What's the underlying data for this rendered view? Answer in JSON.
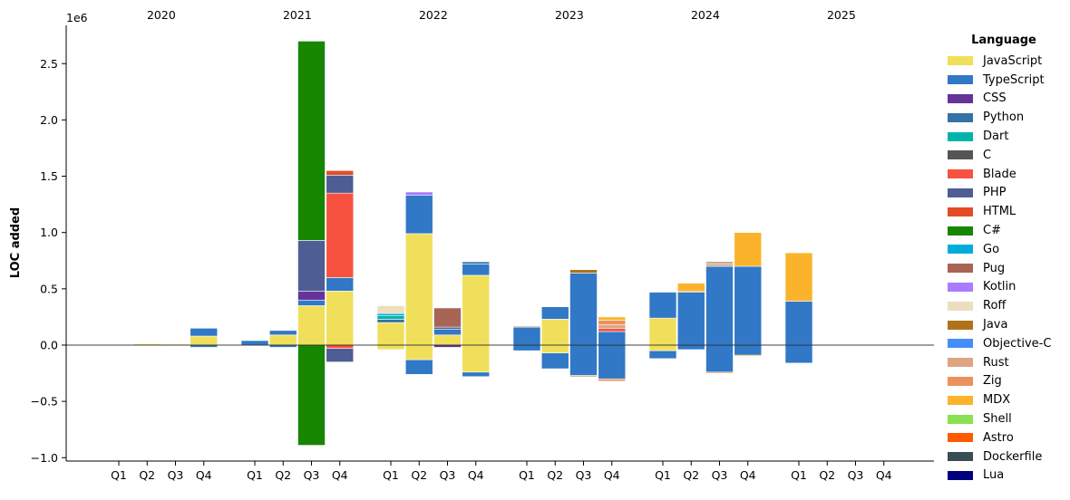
{
  "chart_data": {
    "type": "bar",
    "ylabel": "LOC added",
    "y_offset_label": "1e6",
    "ylim": [
      -1.03,
      2.84
    ],
    "yticks": [
      -1.0,
      -0.5,
      0.0,
      0.5,
      1.0,
      1.5,
      2.0,
      2.5
    ],
    "yticklabels": [
      "−1.0",
      "−0.5",
      "0.0",
      "0.5",
      "1.0",
      "1.5",
      "2.0",
      "2.5"
    ],
    "years": [
      "2020",
      "2021",
      "2022",
      "2023",
      "2024",
      "2025"
    ],
    "quarters": [
      "Q1",
      "Q2",
      "Q3",
      "Q4"
    ],
    "legend_title": "Language",
    "legend_position": "right",
    "languages": [
      {
        "name": "JavaScript",
        "color": "#f0df5a"
      },
      {
        "name": "TypeScript",
        "color": "#3178c6"
      },
      {
        "name": "CSS",
        "color": "#663399"
      },
      {
        "name": "Python",
        "color": "#3572a5"
      },
      {
        "name": "Dart",
        "color": "#00b4ab"
      },
      {
        "name": "C",
        "color": "#555555"
      },
      {
        "name": "Blade",
        "color": "#f7523f"
      },
      {
        "name": "PHP",
        "color": "#4f5d95"
      },
      {
        "name": "HTML",
        "color": "#e34c26"
      },
      {
        "name": "C#",
        "color": "#178600"
      },
      {
        "name": "Go",
        "color": "#00add8"
      },
      {
        "name": "Pug",
        "color": "#a86454"
      },
      {
        "name": "Kotlin",
        "color": "#a97bff"
      },
      {
        "name": "Roff",
        "color": "#ecdebe"
      },
      {
        "name": "Java",
        "color": "#b07219"
      },
      {
        "name": "Objective-C",
        "color": "#438eff"
      },
      {
        "name": "Rust",
        "color": "#dea584"
      },
      {
        "name": "Zig",
        "color": "#ec915c"
      },
      {
        "name": "MDX",
        "color": "#fcb32c"
      },
      {
        "name": "Shell",
        "color": "#89e051"
      },
      {
        "name": "Astro",
        "color": "#ff5a03"
      },
      {
        "name": "Dockerfile",
        "color": "#384d54"
      },
      {
        "name": "Lua",
        "color": "#000080"
      }
    ],
    "bars": [
      {
        "year": "2020",
        "quarter": "Q1",
        "positive": [],
        "negative": []
      },
      {
        "year": "2020",
        "quarter": "Q2",
        "positive": [
          {
            "lang": "JavaScript",
            "value": 0.012
          }
        ],
        "negative": []
      },
      {
        "year": "2020",
        "quarter": "Q3",
        "positive": [
          {
            "lang": "JavaScript",
            "value": 0.008
          }
        ],
        "negative": []
      },
      {
        "year": "2020",
        "quarter": "Q4",
        "positive": [
          {
            "lang": "JavaScript",
            "value": 0.08
          },
          {
            "lang": "TypeScript",
            "value": 0.07
          }
        ],
        "negative": [
          {
            "lang": "TypeScript",
            "value": 0.02
          }
        ]
      },
      {
        "year": "2021",
        "quarter": "Q1",
        "positive": [
          {
            "lang": "TypeScript",
            "value": 0.04
          }
        ],
        "negative": [
          {
            "lang": "TypeScript",
            "value": 0.005
          }
        ]
      },
      {
        "year": "2021",
        "quarter": "Q2",
        "positive": [
          {
            "lang": "JavaScript",
            "value": 0.09
          },
          {
            "lang": "TypeScript",
            "value": 0.04
          }
        ],
        "negative": [
          {
            "lang": "TypeScript",
            "value": 0.02
          }
        ]
      },
      {
        "year": "2021",
        "quarter": "Q3",
        "positive": [
          {
            "lang": "JavaScript",
            "value": 0.35
          },
          {
            "lang": "TypeScript",
            "value": 0.05
          },
          {
            "lang": "CSS",
            "value": 0.08
          },
          {
            "lang": "PHP",
            "value": 0.45
          },
          {
            "lang": "C#",
            "value": 1.77
          }
        ],
        "negative": [
          {
            "lang": "C#",
            "value": 0.89
          }
        ]
      },
      {
        "year": "2021",
        "quarter": "Q4",
        "positive": [
          {
            "lang": "JavaScript",
            "value": 0.48
          },
          {
            "lang": "TypeScript",
            "value": 0.12
          },
          {
            "lang": "Blade",
            "value": 0.75
          },
          {
            "lang": "PHP",
            "value": 0.16
          },
          {
            "lang": "HTML",
            "value": 0.04
          }
        ],
        "negative": [
          {
            "lang": "Blade",
            "value": 0.03
          },
          {
            "lang": "PHP",
            "value": 0.12
          }
        ]
      },
      {
        "year": "2022",
        "quarter": "Q1",
        "positive": [
          {
            "lang": "JavaScript",
            "value": 0.2
          },
          {
            "lang": "Python",
            "value": 0.03
          },
          {
            "lang": "Dart",
            "value": 0.03
          },
          {
            "lang": "Go",
            "value": 0.02
          },
          {
            "lang": "Roff",
            "value": 0.07
          }
        ],
        "negative": [
          {
            "lang": "JavaScript",
            "value": 0.04
          }
        ]
      },
      {
        "year": "2022",
        "quarter": "Q2",
        "positive": [
          {
            "lang": "JavaScript",
            "value": 0.99
          },
          {
            "lang": "TypeScript",
            "value": 0.34
          },
          {
            "lang": "Kotlin",
            "value": 0.03
          }
        ],
        "negative": [
          {
            "lang": "JavaScript",
            "value": 0.13
          },
          {
            "lang": "TypeScript",
            "value": 0.13
          }
        ]
      },
      {
        "year": "2022",
        "quarter": "Q3",
        "positive": [
          {
            "lang": "JavaScript",
            "value": 0.09
          },
          {
            "lang": "TypeScript",
            "value": 0.05
          },
          {
            "lang": "PHP",
            "value": 0.02
          },
          {
            "lang": "Pug",
            "value": 0.17
          }
        ],
        "negative": [
          {
            "lang": "CSS",
            "value": 0.02
          }
        ]
      },
      {
        "year": "2022",
        "quarter": "Q4",
        "positive": [
          {
            "lang": "JavaScript",
            "value": 0.62
          },
          {
            "lang": "TypeScript",
            "value": 0.1
          },
          {
            "lang": "Python",
            "value": 0.02
          }
        ],
        "negative": [
          {
            "lang": "JavaScript",
            "value": 0.24
          },
          {
            "lang": "TypeScript",
            "value": 0.04
          }
        ]
      },
      {
        "year": "2023",
        "quarter": "Q1",
        "positive": [
          {
            "lang": "TypeScript",
            "value": 0.16
          },
          {
            "lang": "Rust",
            "value": 0.01
          }
        ],
        "negative": [
          {
            "lang": "TypeScript",
            "value": 0.05
          }
        ]
      },
      {
        "year": "2023",
        "quarter": "Q2",
        "positive": [
          {
            "lang": "JavaScript",
            "value": 0.23
          },
          {
            "lang": "TypeScript",
            "value": 0.11
          }
        ],
        "negative": [
          {
            "lang": "JavaScript",
            "value": 0.07
          },
          {
            "lang": "TypeScript",
            "value": 0.14
          }
        ]
      },
      {
        "year": "2023",
        "quarter": "Q3",
        "positive": [
          {
            "lang": "TypeScript",
            "value": 0.64
          },
          {
            "lang": "Java",
            "value": 0.03
          }
        ],
        "negative": [
          {
            "lang": "TypeScript",
            "value": 0.27
          },
          {
            "lang": "Java",
            "value": 0.01
          }
        ]
      },
      {
        "year": "2023",
        "quarter": "Q4",
        "positive": [
          {
            "lang": "TypeScript",
            "value": 0.12
          },
          {
            "lang": "Blade",
            "value": 0.03
          },
          {
            "lang": "Rust",
            "value": 0.03
          },
          {
            "lang": "Zig",
            "value": 0.04
          },
          {
            "lang": "MDX",
            "value": 0.03
          }
        ],
        "negative": [
          {
            "lang": "TypeScript",
            "value": 0.3
          },
          {
            "lang": "Zig",
            "value": 0.02
          }
        ]
      },
      {
        "year": "2024",
        "quarter": "Q1",
        "positive": [
          {
            "lang": "JavaScript",
            "value": 0.24
          },
          {
            "lang": "TypeScript",
            "value": 0.23
          }
        ],
        "negative": [
          {
            "lang": "JavaScript",
            "value": 0.05
          },
          {
            "lang": "TypeScript",
            "value": 0.07
          }
        ]
      },
      {
        "year": "2024",
        "quarter": "Q2",
        "positive": [
          {
            "lang": "TypeScript",
            "value": 0.47
          },
          {
            "lang": "Java",
            "value": 0.01
          },
          {
            "lang": "MDX",
            "value": 0.07
          }
        ],
        "negative": [
          {
            "lang": "TypeScript",
            "value": 0.04
          }
        ]
      },
      {
        "year": "2024",
        "quarter": "Q3",
        "positive": [
          {
            "lang": "TypeScript",
            "value": 0.7
          },
          {
            "lang": "Rust",
            "value": 0.02
          },
          {
            "lang": "C",
            "value": 0.01
          },
          {
            "lang": "Java",
            "value": 0.01
          }
        ],
        "negative": [
          {
            "lang": "TypeScript",
            "value": 0.24
          },
          {
            "lang": "Zig",
            "value": 0.01
          }
        ]
      },
      {
        "year": "2024",
        "quarter": "Q4",
        "positive": [
          {
            "lang": "TypeScript",
            "value": 0.7
          },
          {
            "lang": "MDX",
            "value": 0.3
          }
        ],
        "negative": [
          {
            "lang": "TypeScript",
            "value": 0.09
          },
          {
            "lang": "MDX",
            "value": 0.01
          }
        ]
      },
      {
        "year": "2025",
        "quarter": "Q1",
        "positive": [
          {
            "lang": "TypeScript",
            "value": 0.39
          },
          {
            "lang": "MDX",
            "value": 0.43
          }
        ],
        "negative": [
          {
            "lang": "TypeScript",
            "value": 0.16
          }
        ]
      },
      {
        "year": "2025",
        "quarter": "Q2",
        "positive": [],
        "negative": []
      },
      {
        "year": "2025",
        "quarter": "Q3",
        "positive": [],
        "negative": []
      },
      {
        "year": "2025",
        "quarter": "Q4",
        "positive": [],
        "negative": []
      }
    ]
  }
}
